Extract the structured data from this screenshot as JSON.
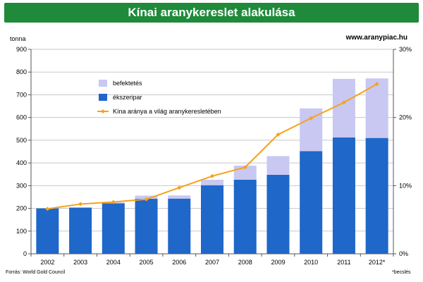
{
  "title": "Kínai aranykereslet alakulása",
  "unit_label": "tonna",
  "website": "www.aranypiac.hu",
  "source": "Forrás: World Gold Council",
  "footnote": "*becslés",
  "chart_data": {
    "type": "bar",
    "stacked": true,
    "categories": [
      "2002",
      "2003",
      "2004",
      "2005",
      "2006",
      "2007",
      "2008",
      "2009",
      "2010",
      "2011",
      "2012*"
    ],
    "series": [
      {
        "name": "ékszeripar",
        "type": "bar",
        "axis": "left",
        "color": "#1f67c9",
        "values": [
          200,
          203,
          222,
          242,
          243,
          302,
          326,
          348,
          452,
          512,
          510
        ]
      },
      {
        "name": "befektetés",
        "type": "bar",
        "axis": "left",
        "color": "#c9c8f2",
        "values": [
          1,
          2,
          4,
          14,
          14,
          24,
          62,
          82,
          188,
          258,
          262
        ]
      },
      {
        "name": "Kína aránya a világ aranykeresletében",
        "type": "line",
        "axis": "right",
        "color": "#f5a21b",
        "values": [
          6.6,
          7.3,
          7.6,
          8.0,
          9.7,
          11.4,
          12.7,
          17.5,
          19.9,
          22.2,
          24.9
        ]
      }
    ],
    "y_left": {
      "min": 0,
      "max": 900,
      "step": 100
    },
    "y_right": {
      "min": 0,
      "max": 30,
      "step": 10,
      "unit": "%"
    },
    "legend_placement": "top-left",
    "grid": true
  }
}
